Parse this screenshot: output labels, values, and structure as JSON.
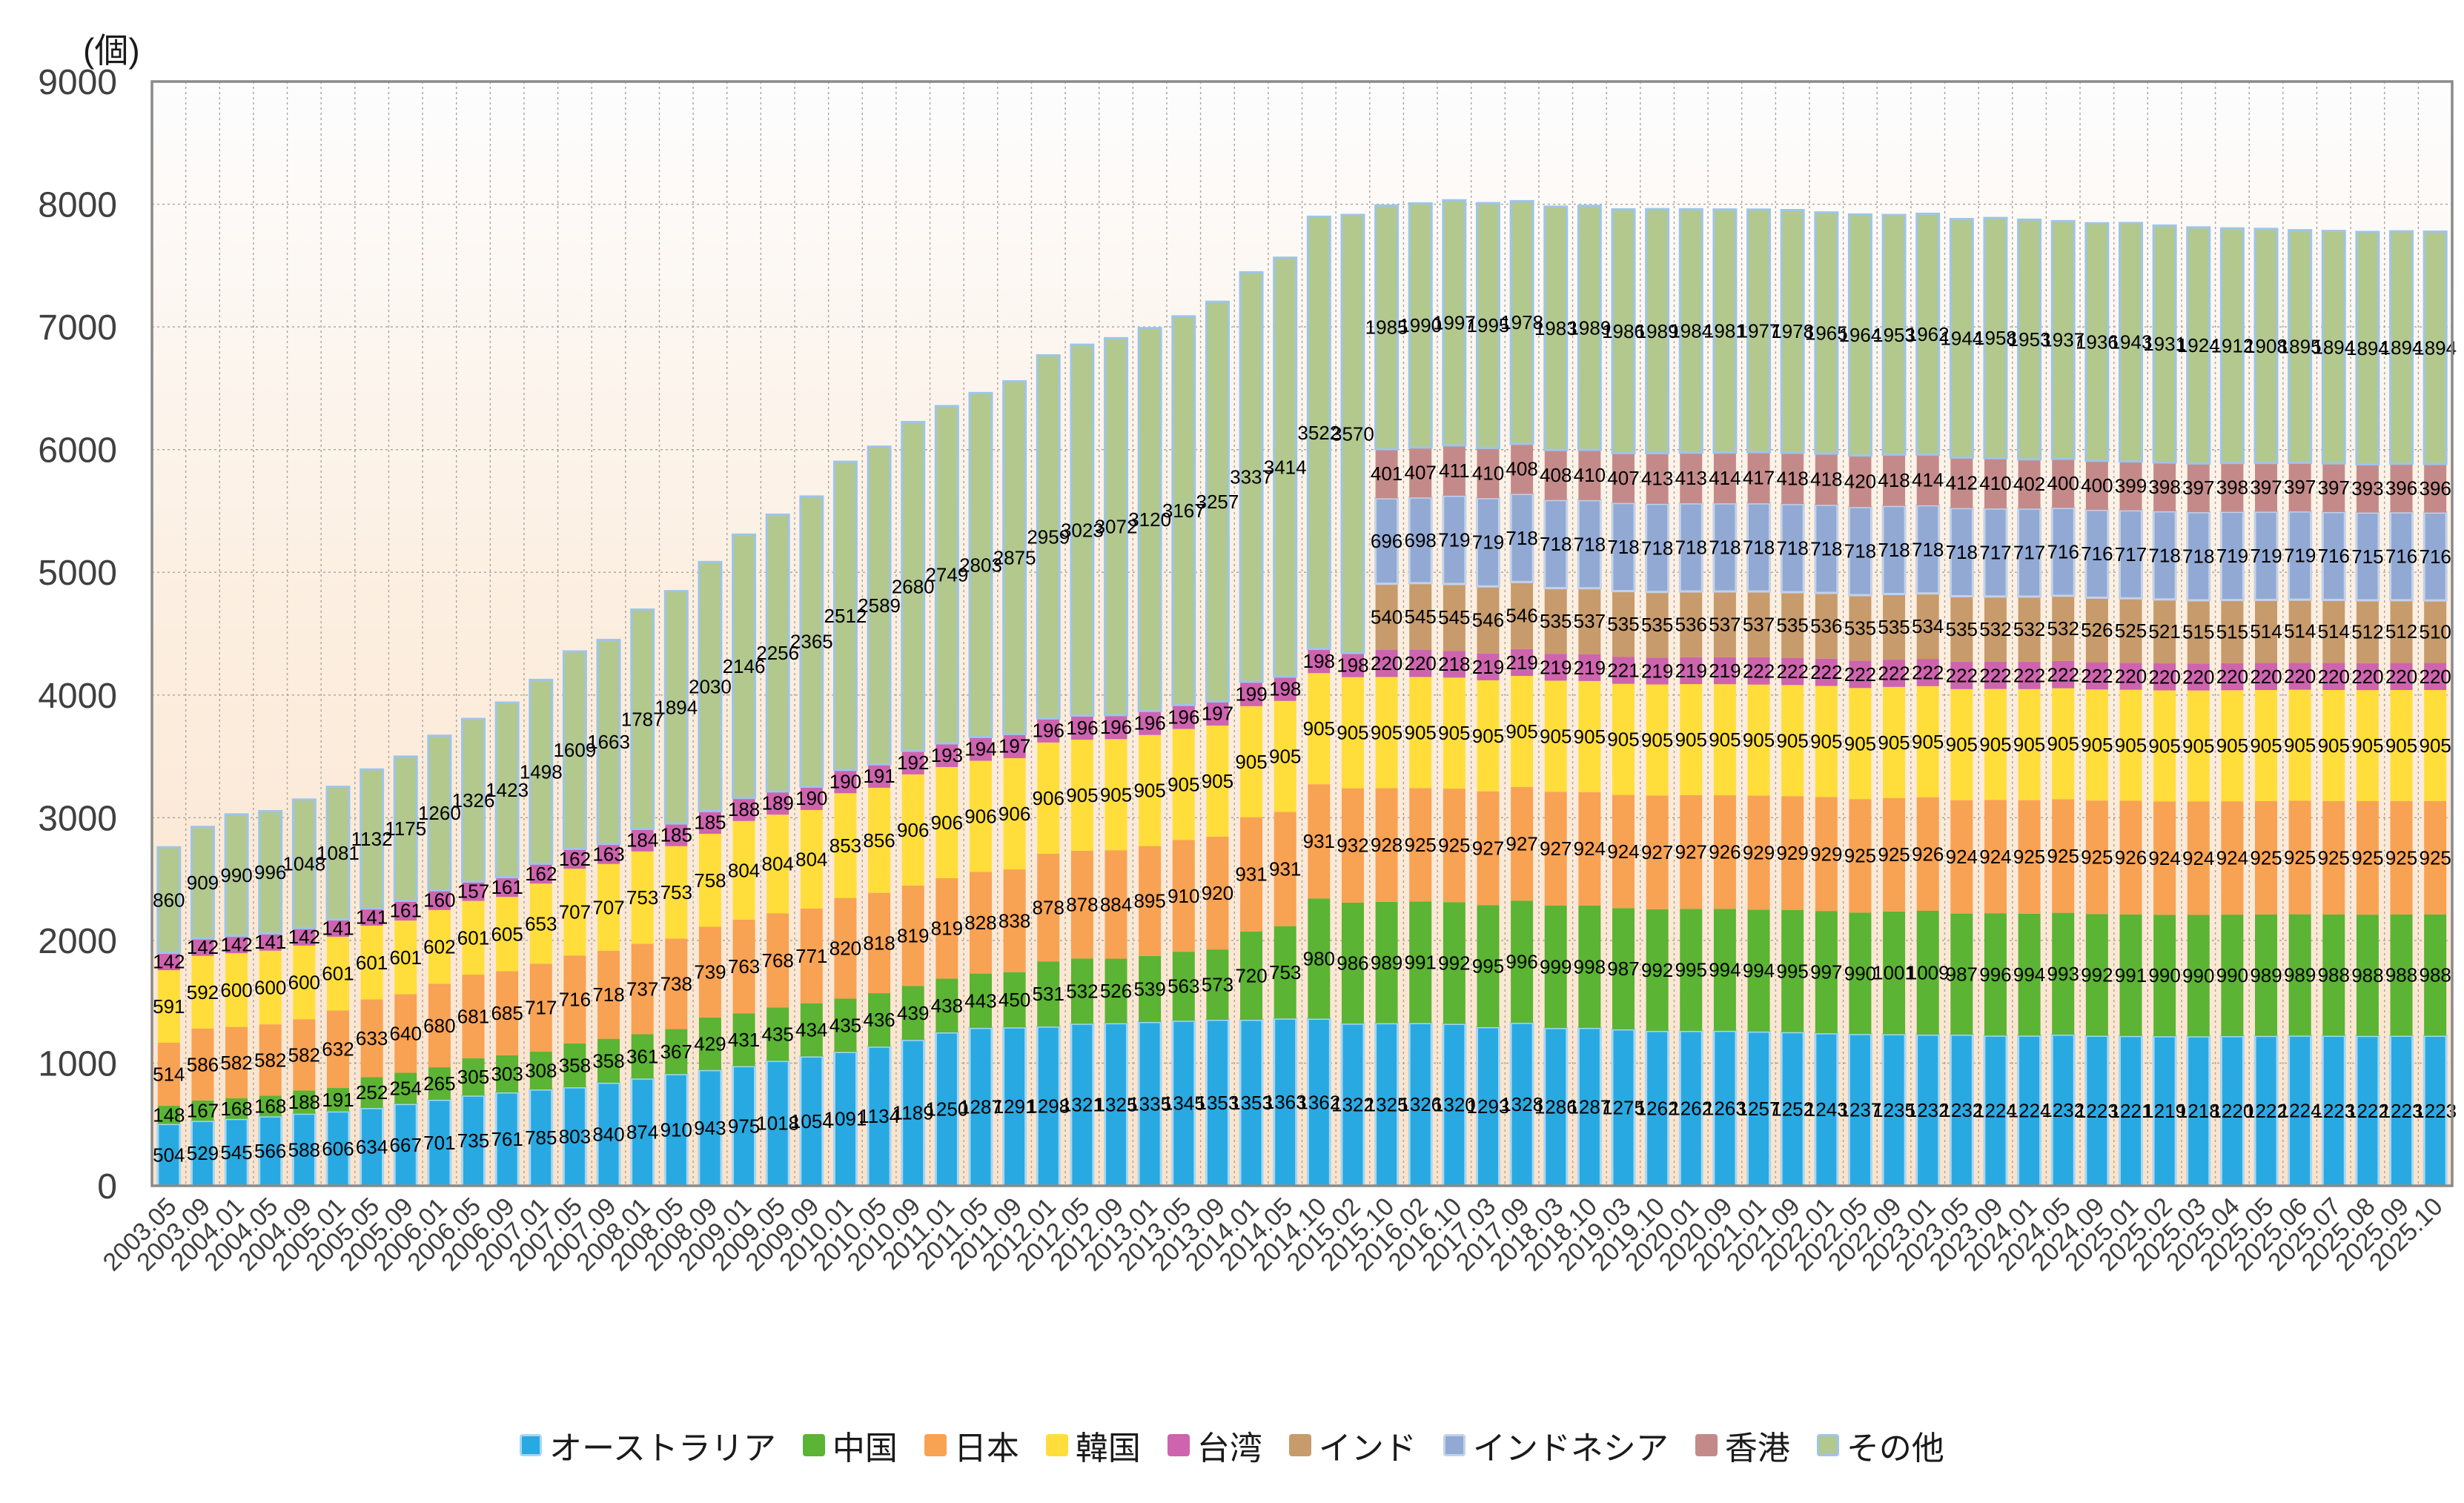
{
  "chart_data": {
    "type": "bar",
    "stacked": true,
    "title": "",
    "xlabel": "",
    "ylabel": "(個)",
    "ylim": [
      0,
      9000
    ],
    "ytick_step": 1000,
    "grid": true,
    "legend_position": "bottom",
    "categories": [
      "2003.05",
      "2003.09",
      "2004.01",
      "2004.05",
      "2004.09",
      "2005.01",
      "2005.05",
      "2005.09",
      "2006.01",
      "2006.05",
      "2006.09",
      "2007.01",
      "2007.05",
      "2007.09",
      "2008.01",
      "2008.05",
      "2008.09",
      "2009.01",
      "2009.05",
      "2009.09",
      "2010.01",
      "2010.05",
      "2010.09",
      "2011.01",
      "2011.05",
      "2011.09",
      "2012.01",
      "2012.05",
      "2012.09",
      "2013.01",
      "2013.05",
      "2013.09",
      "2014.01",
      "2014.05",
      "2014.10",
      "2015.02",
      "2015.10",
      "2016.02",
      "2016.10",
      "2017.03",
      "2017.09",
      "2018.03",
      "2018.10",
      "2019.03",
      "2019.10",
      "2020.01",
      "2020.09",
      "2021.01",
      "2021.09",
      "2022.01",
      "2022.05",
      "2022.09",
      "2023.01",
      "2023.05",
      "2023.09",
      "2024.01",
      "2024.05",
      "2024.09",
      "2025.01",
      "2025.02",
      "2025.03",
      "2025.04",
      "2025.05",
      "2025.06",
      "2025.07",
      "2025.08",
      "2025.09",
      "2025.10"
    ],
    "series": [
      {
        "name": "オーストラリア",
        "color": "#29A9E1",
        "border": "#A5D7F5",
        "values": [
          504,
          529,
          545,
          566,
          588,
          606,
          634,
          667,
          701,
          735,
          761,
          785,
          803,
          840,
          874,
          910,
          943,
          975,
          1018,
          1054,
          1091,
          1134,
          1189,
          1250,
          1287,
          1291,
          1298,
          1321,
          1325,
          1335,
          1345,
          1353,
          1353,
          1363,
          1362,
          1322,
          1325,
          1326,
          1320,
          1293,
          1328,
          1286,
          1287,
          1275,
          1262,
          1262,
          1263,
          1257,
          1252,
          1243,
          1237,
          1235,
          1232,
          1232,
          1224,
          1224,
          1232,
          1223,
          1221,
          1219,
          1218,
          1220,
          1222,
          1224,
          1223,
          1222,
          1223,
          1223
        ]
      },
      {
        "name": "中国",
        "color": "#5BB433",
        "border": null,
        "values": [
          148,
          167,
          168,
          168,
          188,
          191,
          252,
          254,
          265,
          305,
          303,
          308,
          358,
          358,
          361,
          367,
          429,
          431,
          435,
          434,
          435,
          436,
          439,
          438,
          443,
          450,
          531,
          532,
          526,
          539,
          563,
          573,
          720,
          753,
          980,
          986,
          989,
          991,
          992,
          995,
          996,
          999,
          998,
          987,
          992,
          995,
          994,
          994,
          995,
          997,
          990,
          1001,
          1009,
          987,
          996,
          994,
          993,
          992,
          991,
          990,
          990,
          990,
          989,
          989,
          988,
          988,
          988,
          988
        ]
      },
      {
        "name": "日本",
        "color": "#F8A254",
        "border": null,
        "values": [
          514,
          586,
          582,
          582,
          582,
          632,
          633,
          640,
          680,
          681,
          685,
          717,
          716,
          718,
          737,
          738,
          739,
          763,
          768,
          771,
          820,
          818,
          819,
          819,
          828,
          838,
          878,
          878,
          884,
          895,
          910,
          920,
          931,
          931,
          931,
          932,
          928,
          925,
          925,
          927,
          927,
          927,
          924,
          924,
          927,
          927,
          926,
          929,
          929,
          929,
          925,
          925,
          926,
          924,
          924,
          925,
          925,
          925,
          926,
          924,
          924,
          924,
          925,
          925,
          925,
          925,
          925,
          925
        ]
      },
      {
        "name": "韓国",
        "color": "#FFDE3B",
        "border": null,
        "values": [
          591,
          592,
          600,
          600,
          600,
          601,
          601,
          601,
          602,
          601,
          605,
          653,
          707,
          707,
          753,
          753,
          758,
          804,
          804,
          804,
          853,
          856,
          906,
          906,
          906,
          906,
          906,
          905,
          905,
          905,
          905,
          905,
          905,
          905,
          905,
          905,
          905,
          905,
          905,
          905,
          905,
          905,
          905,
          905,
          905,
          905,
          905,
          905,
          905,
          905,
          905,
          905,
          905,
          905,
          905,
          905,
          905,
          905,
          905,
          905,
          905,
          905,
          905,
          905,
          905,
          905,
          905,
          905
        ]
      },
      {
        "name": "台湾",
        "color": "#CE63AE",
        "border": null,
        "values": [
          142,
          142,
          142,
          141,
          142,
          141,
          141,
          161,
          160,
          157,
          161,
          162,
          162,
          163,
          184,
          185,
          185,
          188,
          189,
          190,
          190,
          191,
          192,
          193,
          194,
          197,
          196,
          196,
          196,
          196,
          196,
          197,
          199,
          198,
          198,
          198,
          220,
          220,
          218,
          219,
          219,
          219,
          219,
          221,
          219,
          219,
          219,
          222,
          222,
          222,
          222,
          222,
          222,
          222,
          222,
          222,
          222,
          222,
          220,
          220,
          220,
          220,
          220,
          220,
          220,
          220,
          220,
          220
        ]
      },
      {
        "name": "インド",
        "color": "#C79B6C",
        "border": null,
        "values": [
          0,
          0,
          0,
          0,
          0,
          0,
          0,
          0,
          0,
          0,
          0,
          0,
          0,
          0,
          0,
          0,
          0,
          0,
          0,
          0,
          0,
          0,
          0,
          0,
          0,
          0,
          0,
          0,
          0,
          0,
          0,
          0,
          0,
          0,
          0,
          0,
          540,
          545,
          545,
          546,
          546,
          535,
          537,
          535,
          535,
          536,
          537,
          537,
          535,
          536,
          535,
          535,
          534,
          535,
          532,
          532,
          532,
          526,
          525,
          521,
          515,
          515,
          514,
          514,
          514,
          512,
          512,
          510
        ]
      },
      {
        "name": "インドネシア",
        "color": "#92A9D4",
        "border": "#C3D2E8",
        "values": [
          0,
          0,
          0,
          0,
          0,
          0,
          0,
          0,
          0,
          0,
          0,
          0,
          0,
          0,
          0,
          0,
          0,
          0,
          0,
          0,
          0,
          0,
          0,
          0,
          0,
          0,
          0,
          0,
          0,
          0,
          0,
          0,
          0,
          0,
          0,
          0,
          696,
          698,
          719,
          719,
          718,
          718,
          718,
          718,
          718,
          718,
          718,
          718,
          718,
          718,
          718,
          718,
          718,
          718,
          717,
          717,
          716,
          716,
          717,
          718,
          718,
          719,
          719,
          719,
          716,
          715,
          716,
          716
        ]
      },
      {
        "name": "香港",
        "color": "#C48A8A",
        "border": null,
        "values": [
          0,
          0,
          0,
          0,
          0,
          0,
          0,
          0,
          0,
          0,
          0,
          0,
          0,
          0,
          0,
          0,
          0,
          0,
          0,
          0,
          0,
          0,
          0,
          0,
          0,
          0,
          0,
          0,
          0,
          0,
          0,
          0,
          0,
          0,
          0,
          0,
          401,
          407,
          411,
          410,
          408,
          408,
          410,
          407,
          413,
          413,
          414,
          417,
          418,
          418,
          420,
          418,
          414,
          412,
          410,
          402,
          400,
          400,
          399,
          398,
          397,
          398,
          397,
          397,
          397,
          393,
          396,
          396
        ]
      },
      {
        "name": "その他",
        "color": "#B3C88D",
        "border": "#9DC5EA",
        "values": [
          860,
          909,
          990,
          996,
          1048,
          1081,
          1132,
          1175,
          1260,
          1326,
          1423,
          1498,
          1609,
          1663,
          1787,
          1894,
          2030,
          2146,
          2256,
          2365,
          2512,
          2589,
          2680,
          2749,
          2803,
          2875,
          2959,
          3023,
          3072,
          3120,
          3167,
          3257,
          3337,
          3414,
          3522,
          3570,
          1985,
          1990,
          1997,
          1995,
          1978,
          1983,
          1989,
          1986,
          1989,
          1984,
          1981,
          1977,
          1978,
          1965,
          1964,
          1953,
          1962,
          1944,
          1958,
          1953,
          1937,
          1936,
          1943,
          1931,
          1924,
          1912,
          1908,
          1895,
          1894,
          1894,
          1894,
          1894
        ]
      }
    ]
  }
}
